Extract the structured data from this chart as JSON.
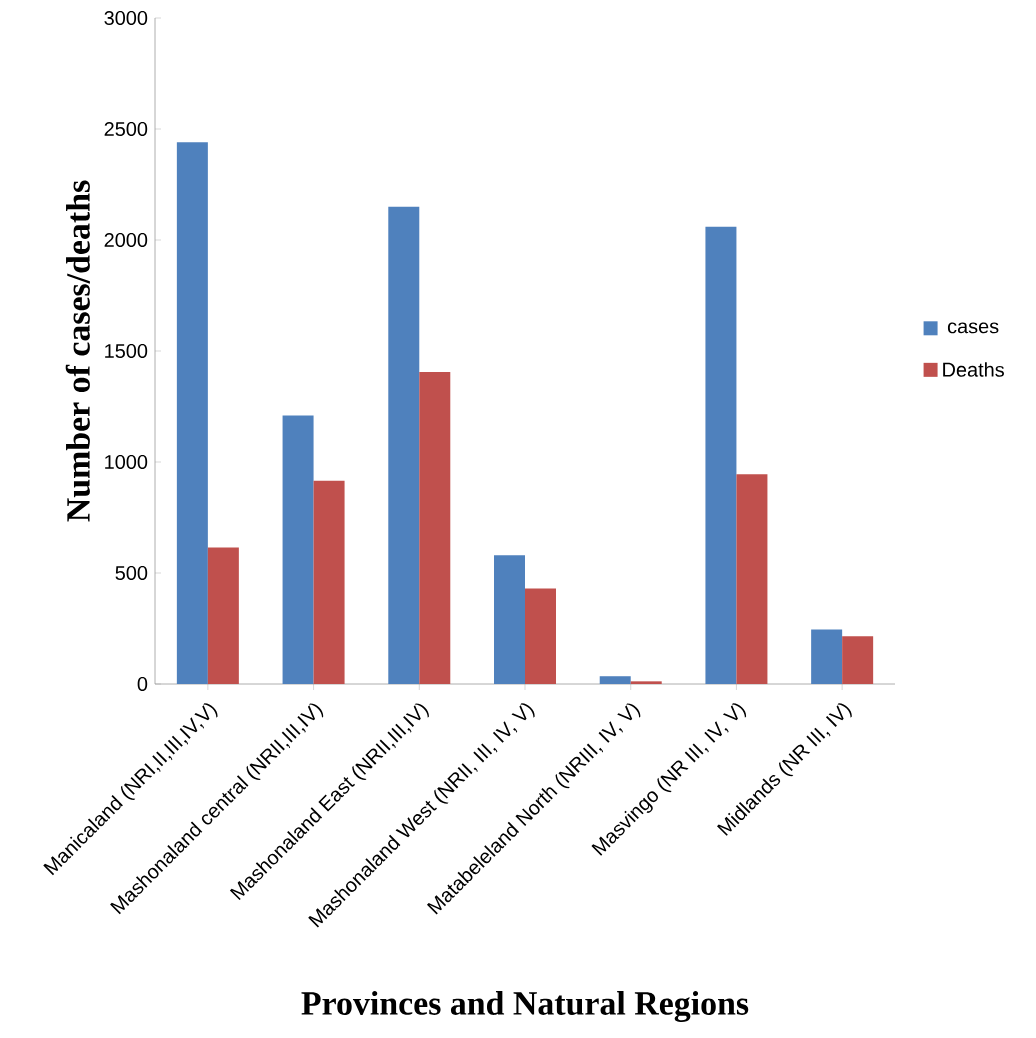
{
  "chart_data": {
    "type": "bar",
    "xlabel": "Provinces and Natural Regions",
    "ylabel": "Number of cases/deaths",
    "categories": [
      "Manicaland (NRI,II,III,IV,V)",
      "Mashonaland central (NRII,III,IV)",
      "Mashonaland East (NRII,III,IV)",
      "Mashonaland West (NRII, III, IV, V)",
      "Matabeleland North (NRIII, IV, V)",
      "Masvingo (NR III, IV, V)",
      "Midlands (NR III, IV)"
    ],
    "series": [
      {
        "name": "cases",
        "color": "#4f81bd",
        "values": [
          2440,
          1210,
          2150,
          580,
          35,
          2060,
          245
        ]
      },
      {
        "name": "Deaths",
        "color": "#c0504d",
        "values": [
          615,
          915,
          1405,
          430,
          12,
          945,
          215
        ]
      }
    ],
    "ylim": [
      0,
      3000
    ],
    "yticks": [
      0,
      500,
      1000,
      1500,
      2000,
      2500,
      3000
    ],
    "grid": false,
    "legend": "right"
  }
}
